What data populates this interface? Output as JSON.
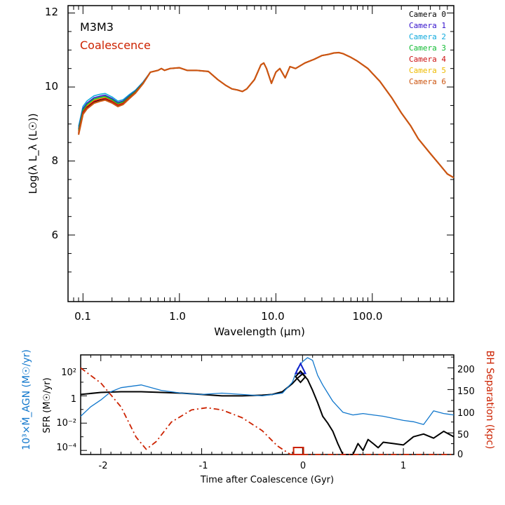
{
  "chart_data": [
    {
      "type": "line",
      "title": "",
      "annotations": [
        {
          "text": "M3M3",
          "color": "#000000"
        },
        {
          "text": "Coalescence",
          "color": "#cc2200"
        }
      ],
      "xlabel": "Wavelength (μm)",
      "ylabel": "Log(λ L_λ (L☉))",
      "xscale": "log",
      "xlim": [
        0.07,
        700
      ],
      "ylim": [
        4.2,
        12.2
      ],
      "xticks": [
        0.1,
        1.0,
        10.0,
        100.0
      ],
      "xtick_labels": [
        "0.1",
        "1.0",
        "10.0",
        "100.0"
      ],
      "yticks": [
        6,
        8,
        10,
        12
      ],
      "ytick_labels": [
        "6",
        "8",
        "10",
        "12"
      ],
      "legend": {
        "position": "top-right",
        "entries": [
          {
            "label": "Camera 0",
            "color": "#000000"
          },
          {
            "label": "Camera 1",
            "color": "#3311cc"
          },
          {
            "label": "Camera 2",
            "color": "#11aadd"
          },
          {
            "label": "Camera 3",
            "color": "#11bb33"
          },
          {
            "label": "Camera 4",
            "color": "#cc1111"
          },
          {
            "label": "Camera 5",
            "color": "#eebb00"
          },
          {
            "label": "Camera 6",
            "color": "#cc5511"
          }
        ]
      },
      "base_series": {
        "x": [
          0.09,
          0.1,
          0.11,
          0.13,
          0.15,
          0.17,
          0.2,
          0.23,
          0.26,
          0.3,
          0.35,
          0.42,
          0.5,
          0.6,
          0.65,
          0.7,
          0.8,
          1.0,
          1.2,
          1.5,
          2.0,
          2.5,
          3.0,
          3.5,
          4.0,
          4.5,
          5.0,
          6.0,
          7.0,
          7.5,
          8.0,
          9.0,
          10.0,
          11.0,
          12.5,
          14.0,
          16.0,
          20.0,
          25.0,
          30.0,
          35.0,
          40.0,
          45.0,
          50.0,
          60.0,
          70.0,
          90.0,
          120.0,
          160.0,
          200.0,
          250.0,
          300.0,
          400.0,
          500.0,
          600.0,
          700.0
        ],
        "y": [
          8.75,
          9.3,
          9.45,
          9.6,
          9.65,
          9.68,
          9.6,
          9.5,
          9.55,
          9.7,
          9.85,
          10.1,
          10.4,
          10.45,
          10.5,
          10.45,
          10.5,
          10.52,
          10.45,
          10.45,
          10.42,
          10.2,
          10.05,
          9.95,
          9.92,
          9.88,
          9.95,
          10.2,
          10.6,
          10.65,
          10.5,
          10.1,
          10.4,
          10.5,
          10.25,
          10.55,
          10.5,
          10.65,
          10.75,
          10.85,
          10.88,
          10.92,
          10.93,
          10.9,
          10.8,
          10.7,
          10.5,
          10.15,
          9.7,
          9.3,
          8.95,
          8.6,
          8.2,
          7.9,
          7.65,
          7.55
        ]
      },
      "camera_offsets_uv": [
        0.0,
        0.12,
        0.18,
        0.08,
        0.02,
        0.06,
        -0.04
      ]
    },
    {
      "type": "line",
      "title": "",
      "xlabel": "Time after Coalescence (Gyr)",
      "ylabel_left": "10³×Ṁ_AGN (M☉/yr)",
      "ylabel_left_inner": "SFR (M☉/yr)",
      "ylabel_right": "BH Separation (kpc)",
      "xlim": [
        -2.2,
        1.5
      ],
      "xticks": [
        -2,
        -1,
        0,
        1
      ],
      "xtick_labels": [
        "-2",
        "-1",
        "0",
        "1"
      ],
      "ylim_log": [
        -4.3,
        3.0
      ],
      "yticks_log": [
        -4,
        -2,
        0,
        2
      ],
      "ytick_labels": [
        "10⁻⁴",
        "10⁻²",
        "1",
        "10²"
      ],
      "ylim_right": [
        0,
        230
      ],
      "yticks_right": [
        0,
        50,
        100,
        150,
        200
      ],
      "ytick_labels_right": [
        "0",
        "50",
        "100",
        "150",
        "200"
      ],
      "series": [
        {
          "name": "SFR",
          "color": "#000000",
          "x": [
            -2.2,
            -2.0,
            -1.8,
            -1.6,
            -1.4,
            -1.2,
            -1.0,
            -0.8,
            -0.6,
            -0.4,
            -0.3,
            -0.2,
            -0.1,
            -0.05,
            0.0,
            0.05,
            0.1,
            0.15,
            0.2,
            0.25,
            0.3,
            0.35,
            0.4,
            0.45,
            0.5,
            0.55,
            0.6,
            0.65,
            0.7,
            0.75,
            0.8,
            0.9,
            1.0,
            1.1,
            1.2,
            1.3,
            1.4,
            1.5
          ],
          "y_log": [
            0.1,
            0.25,
            0.3,
            0.3,
            0.25,
            0.2,
            0.1,
            0.0,
            0.0,
            0.05,
            0.1,
            0.3,
            0.9,
            1.3,
            1.6,
            1.2,
            0.4,
            -0.5,
            -1.5,
            -2.0,
            -2.6,
            -3.5,
            -4.3,
            -4.3,
            -4.3,
            -3.5,
            -4.0,
            -3.2,
            -3.5,
            -3.8,
            -3.4,
            -3.5,
            -3.6,
            -3.0,
            -2.8,
            -3.1,
            -2.6,
            -3.0
          ]
        },
        {
          "name": "10³×Ṁ_AGN",
          "color": "#1177cc",
          "x": [
            -2.2,
            -2.1,
            -2.0,
            -1.9,
            -1.8,
            -1.6,
            -1.4,
            -1.2,
            -1.0,
            -0.8,
            -0.6,
            -0.4,
            -0.2,
            -0.1,
            -0.05,
            0.0,
            0.05,
            0.1,
            0.15,
            0.2,
            0.25,
            0.3,
            0.4,
            0.5,
            0.6,
            0.7,
            0.8,
            1.0,
            1.1,
            1.2,
            1.25,
            1.3,
            1.4,
            1.5
          ],
          "y_log": [
            -1.5,
            -0.8,
            -0.3,
            0.3,
            0.6,
            0.8,
            0.4,
            0.2,
            0.1,
            0.2,
            0.1,
            0.0,
            0.2,
            1.0,
            2.0,
            2.5,
            2.8,
            2.6,
            1.5,
            0.8,
            0.2,
            -0.4,
            -1.2,
            -1.4,
            -1.3,
            -1.4,
            -1.5,
            -1.8,
            -1.9,
            -2.1,
            -1.6,
            -1.1,
            -1.3,
            -1.4
          ]
        },
        {
          "name": "BH Separation",
          "color": "#cc2200",
          "axis": "right",
          "style": "dash-dot",
          "x": [
            -2.2,
            -2.0,
            -1.8,
            -1.65,
            -1.55,
            -1.45,
            -1.3,
            -1.1,
            -0.95,
            -0.8,
            -0.6,
            -0.4,
            -0.25,
            -0.12,
            -0.05,
            0.0
          ],
          "y": [
            200,
            165,
            110,
            40,
            12,
            30,
            75,
            103,
            108,
            103,
            85,
            55,
            20,
            0,
            0,
            0
          ]
        }
      ],
      "markers": [
        {
          "name": "AGN peak",
          "shape": "triangle",
          "color": "#1122cc",
          "x": -0.02,
          "y_log": 1.9
        },
        {
          "name": "SFR peak",
          "shape": "diamond",
          "color": "#000000",
          "x": -0.02,
          "y_log": 1.4
        },
        {
          "name": "Coalescence",
          "shape": "square",
          "color": "#cc2200",
          "x": -0.04,
          "y_right": 0
        }
      ]
    }
  ]
}
